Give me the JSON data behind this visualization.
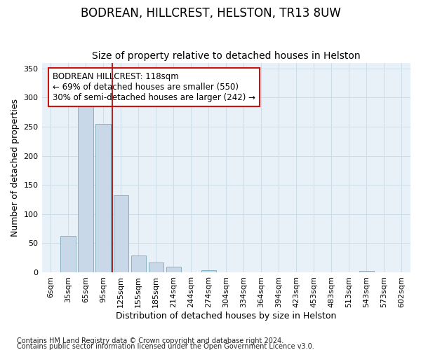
{
  "title": "BODREAN, HILLCREST, HELSTON, TR13 8UW",
  "subtitle": "Size of property relative to detached houses in Helston",
  "xlabel": "Distribution of detached houses by size in Helston",
  "ylabel": "Number of detached properties",
  "footnote1": "Contains HM Land Registry data © Crown copyright and database right 2024.",
  "footnote2": "Contains public sector information licensed under the Open Government Licence v3.0.",
  "categories": [
    "6sqm",
    "35sqm",
    "65sqm",
    "95sqm",
    "125sqm",
    "155sqm",
    "185sqm",
    "214sqm",
    "244sqm",
    "274sqm",
    "304sqm",
    "334sqm",
    "364sqm",
    "394sqm",
    "423sqm",
    "453sqm",
    "483sqm",
    "513sqm",
    "543sqm",
    "573sqm",
    "602sqm"
  ],
  "bar_values": [
    0,
    62,
    291,
    255,
    132,
    29,
    17,
    10,
    0,
    4,
    0,
    0,
    0,
    0,
    0,
    0,
    0,
    0,
    2,
    0,
    0
  ],
  "bar_color": "#c8d8e8",
  "bar_edge_color": "#7aaabb",
  "vline_x_index": 3.5,
  "vline_color": "#aa1111",
  "annotation_line1": "BODREAN HILLCREST: 118sqm",
  "annotation_line2": "← 69% of detached houses are smaller (550)",
  "annotation_line3": "30% of semi-detached houses are larger (242) →",
  "ylim": [
    0,
    360
  ],
  "yticks": [
    0,
    50,
    100,
    150,
    200,
    250,
    300,
    350
  ],
  "grid_color": "#ccdde8",
  "background_color": "#e8f0f8",
  "title_fontsize": 12,
  "subtitle_fontsize": 10,
  "tick_fontsize": 8,
  "label_fontsize": 9,
  "footnote_fontsize": 7
}
